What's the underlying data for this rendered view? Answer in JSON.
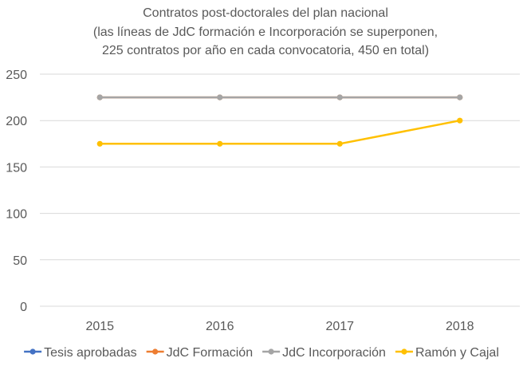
{
  "chart_data": {
    "type": "line",
    "title_lines": [
      "Contratos post-doctorales del plan nacional",
      "(las líneas de JdC formación e Incorporación se superponen,",
      "225 contratos por año en cada convocatoria, 450 en total)"
    ],
    "categories": [
      "2015",
      "2016",
      "2017",
      "2018"
    ],
    "ylim": [
      0,
      250
    ],
    "yticks": [
      0,
      50,
      100,
      150,
      200,
      250
    ],
    "grid": true,
    "legend_position": "bottom",
    "series": [
      {
        "name": "Tesis aprobadas",
        "color": "#4472C4",
        "values": [
          null,
          null,
          null,
          null
        ]
      },
      {
        "name": "JdC Formación",
        "color": "#ED7D31",
        "values": [
          225,
          225,
          225,
          225
        ]
      },
      {
        "name": "JdC Incorporación",
        "color": "#A5A5A5",
        "values": [
          225,
          225,
          225,
          225
        ]
      },
      {
        "name": "Ramón y Cajal",
        "color": "#FFC000",
        "values": [
          175,
          175,
          175,
          200
        ]
      }
    ]
  }
}
